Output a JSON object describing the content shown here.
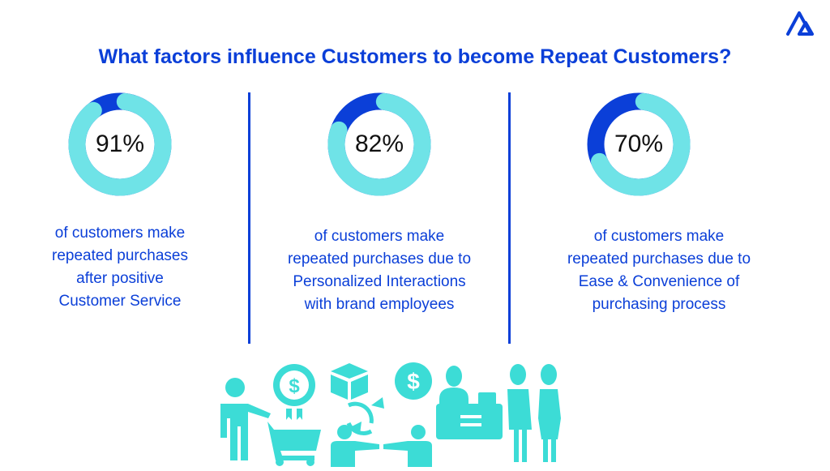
{
  "title": "What factors influence Customers to become Repeat Customers?",
  "colors": {
    "accent": "#0b3fd8",
    "ring_light": "#6fe3e7",
    "ring_dark": "#0b3fd8",
    "icons": "#3cdcd6"
  },
  "chart_data": [
    {
      "type": "pie",
      "style": "donut",
      "value": 91,
      "label": "91%",
      "description": [
        "of customers make",
        "repeated purchases",
        "after positive",
        "Customer Service"
      ]
    },
    {
      "type": "pie",
      "style": "donut",
      "value": 82,
      "label": "82%",
      "description": [
        "of customers make",
        "repeated purchases due to",
        "Personalized Interactions",
        "with brand employees"
      ]
    },
    {
      "type": "pie",
      "style": "donut",
      "value": 70,
      "label": "70%",
      "description": [
        "of customers make",
        "repeated purchases due to",
        "Ease & Convenience of",
        "purchasing process"
      ]
    }
  ],
  "icons": [
    "logo-icon",
    "shopper-cart-icon",
    "dollar-badge-icon",
    "box-icon",
    "exchange-arrows-icon",
    "handshake-people-icon",
    "dollar-coin-icon",
    "cashier-counter-icon",
    "customers-icon"
  ]
}
